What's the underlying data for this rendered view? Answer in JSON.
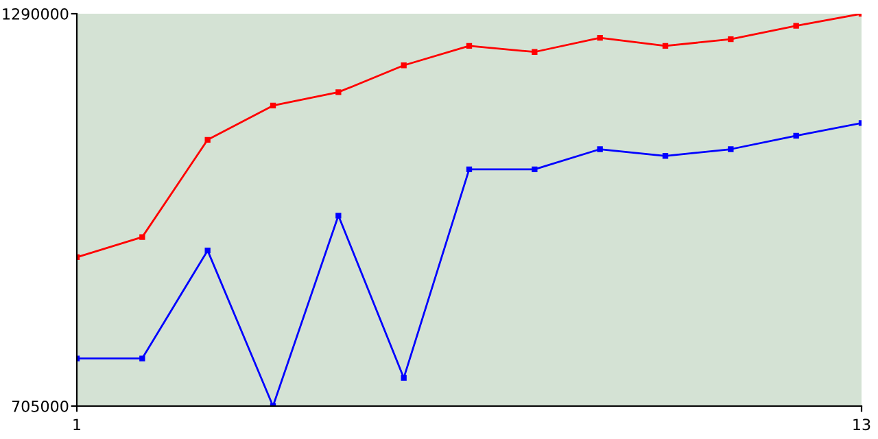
{
  "chart_data": {
    "type": "line",
    "x": [
      1,
      2,
      3,
      4,
      5,
      6,
      7,
      8,
      9,
      10,
      11,
      12,
      13
    ],
    "series": [
      {
        "color": "#ff0000",
        "values": [
          927000,
          957000,
          1102000,
          1153000,
          1173000,
          1213000,
          1242000,
          1233000,
          1254000,
          1242000,
          1252000,
          1272000,
          1290000
        ]
      },
      {
        "color": "#0000ff",
        "values": [
          776000,
          776000,
          937000,
          705000,
          989000,
          747000,
          1058000,
          1058000,
          1088000,
          1078000,
          1088000,
          1108000,
          1127000
        ]
      }
    ],
    "xlim": [
      1,
      13
    ],
    "xticks": [
      1,
      13
    ],
    "ylim": [
      705000,
      1290000
    ],
    "yticks": [
      705000,
      1290000
    ],
    "marker": "square",
    "line_style": "solid",
    "grid": false,
    "legend": false
  }
}
